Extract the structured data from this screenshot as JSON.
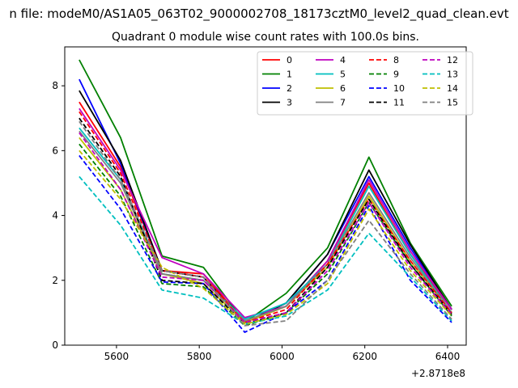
{
  "figure": {
    "suptitle": "n file: modeM0/AS1A05_063T02_9000002708_18173cztM0_level2_quad_clean.evt",
    "offset_text": "+2.8718e8"
  },
  "chart_data": {
    "type": "line",
    "title": "Quadrant 0 module wise count rates with 100.0s bins.",
    "xlabel": "",
    "ylabel": "",
    "x_offset": 287180000,
    "x": [
      5510,
      5610,
      5710,
      5810,
      5910,
      6010,
      6110,
      6210,
      6310,
      6410
    ],
    "xlim": [
      5475,
      6445
    ],
    "ylim": [
      0,
      9.2
    ],
    "xticks": [
      5600,
      5800,
      6000,
      6200,
      6400
    ],
    "yticks": [
      0,
      2,
      4,
      6,
      8
    ],
    "grid": false,
    "legend": {
      "placement": "top-right",
      "columns": 4
    },
    "series": [
      {
        "name": "0",
        "color": "#ff0000",
        "dash": "solid",
        "values": [
          7.5,
          5.5,
          2.3,
          2.2,
          0.7,
          1.2,
          2.6,
          5.0,
          2.8,
          1.1
        ]
      },
      {
        "name": "1",
        "color": "#008000",
        "dash": "solid",
        "values": [
          8.8,
          6.4,
          2.75,
          2.4,
          0.7,
          1.6,
          3.0,
          5.8,
          3.15,
          1.2
        ]
      },
      {
        "name": "2",
        "color": "#0000ff",
        "dash": "solid",
        "values": [
          8.2,
          5.6,
          2.3,
          2.1,
          0.7,
          1.3,
          2.8,
          5.2,
          3.0,
          1.1
        ]
      },
      {
        "name": "3",
        "color": "#000000",
        "dash": "solid",
        "values": [
          7.85,
          5.7,
          2.3,
          2.1,
          0.7,
          1.3,
          2.8,
          5.4,
          3.1,
          1.1
        ]
      },
      {
        "name": "4",
        "color": "#bf00bf",
        "dash": "solid",
        "values": [
          7.3,
          5.4,
          2.7,
          2.2,
          0.85,
          1.2,
          2.6,
          5.1,
          2.9,
          1.1
        ]
      },
      {
        "name": "5",
        "color": "#00bfbf",
        "dash": "solid",
        "values": [
          6.7,
          5.1,
          2.2,
          2.0,
          0.8,
          1.3,
          2.5,
          4.9,
          2.8,
          1.0
        ]
      },
      {
        "name": "6",
        "color": "#bfbf00",
        "dash": "solid",
        "values": [
          6.4,
          4.8,
          2.2,
          1.9,
          0.7,
          1.2,
          2.4,
          4.6,
          2.6,
          1.0
        ]
      },
      {
        "name": "7",
        "color": "#808080",
        "dash": "solid",
        "values": [
          6.6,
          5.0,
          2.2,
          2.0,
          0.75,
          1.2,
          2.5,
          4.7,
          2.7,
          1.0
        ]
      },
      {
        "name": "8",
        "color": "#ff0000",
        "dash": "dashed",
        "values": [
          7.2,
          5.3,
          2.3,
          2.1,
          0.7,
          1.1,
          2.5,
          4.5,
          2.6,
          1.0
        ]
      },
      {
        "name": "9",
        "color": "#008000",
        "dash": "dashed",
        "values": [
          6.2,
          4.6,
          1.9,
          1.8,
          0.6,
          1.0,
          2.2,
          4.4,
          2.5,
          0.9
        ]
      },
      {
        "name": "10",
        "color": "#0000ff",
        "dash": "dashed",
        "values": [
          5.85,
          4.2,
          1.95,
          1.9,
          0.4,
          1.0,
          2.0,
          4.3,
          2.0,
          0.7
        ]
      },
      {
        "name": "11",
        "color": "#000000",
        "dash": "dashed",
        "values": [
          7.0,
          5.2,
          2.0,
          1.9,
          0.65,
          1.0,
          2.4,
          4.5,
          2.5,
          0.95
        ]
      },
      {
        "name": "12",
        "color": "#bf00bf",
        "dash": "dashed",
        "values": [
          6.55,
          4.8,
          2.1,
          2.0,
          0.7,
          1.0,
          2.3,
          4.4,
          2.4,
          0.95
        ]
      },
      {
        "name": "13",
        "color": "#00bfbf",
        "dash": "dashed",
        "values": [
          5.2,
          3.7,
          1.7,
          1.45,
          0.65,
          0.9,
          1.7,
          3.45,
          2.1,
          0.75
        ]
      },
      {
        "name": "14",
        "color": "#bfbf00",
        "dash": "dashed",
        "values": [
          6.0,
          4.5,
          2.4,
          1.75,
          0.65,
          0.95,
          1.9,
          4.2,
          2.3,
          0.9
        ]
      },
      {
        "name": "15",
        "color": "#808080",
        "dash": "dashed",
        "values": [
          6.9,
          5.1,
          2.3,
          2.1,
          0.6,
          0.75,
          2.0,
          3.85,
          2.2,
          0.8
        ]
      }
    ]
  }
}
